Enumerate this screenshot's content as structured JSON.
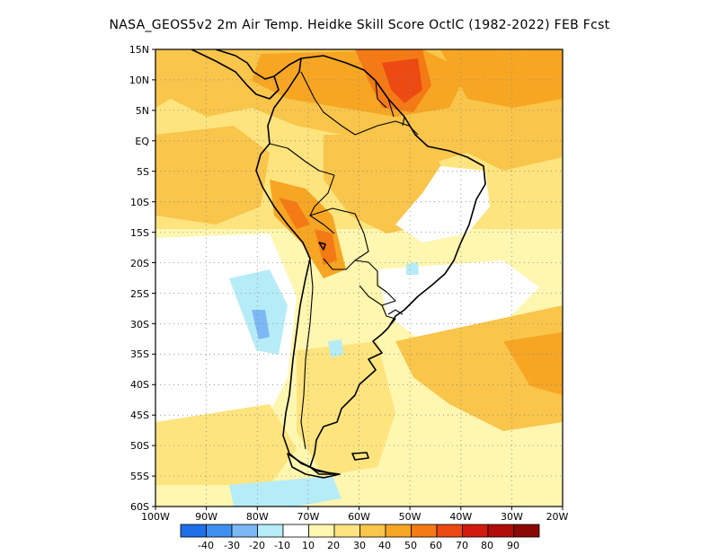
{
  "title": "NASA_GEOS5v2  2m Air Temp. Heidke Skill Score OctlC (1982-2022) FEB Fcst",
  "lat_labels": [
    "15N",
    "10N",
    "5N",
    "EQ",
    "5S",
    "10S",
    "15S",
    "20S",
    "25S",
    "30S",
    "35S",
    "40S",
    "45S",
    "50S",
    "55S",
    "60S"
  ],
  "lon_labels": [
    "100W",
    "90W",
    "80W",
    "70W",
    "60W",
    "50W",
    "40W",
    "30W",
    "20W"
  ],
  "colorbar": {
    "labels": [
      "-40",
      "-30",
      "-20",
      "-10",
      "10",
      "20",
      "30",
      "40",
      "50",
      "60",
      "70",
      "80",
      "90"
    ],
    "colors": [
      "#1f6fe8",
      "#3e8ff0",
      "#7cb8f5",
      "#b6ecf7",
      "#ffffff",
      "#fff6b0",
      "#fde47e",
      "#f9c54a",
      "#f6a623",
      "#f47a16",
      "#ec4a12",
      "#d31a0e",
      "#b00d0a",
      "#8b0806"
    ]
  },
  "shading": {
    "white": "#ffffff",
    "c10": "#fff6b0",
    "c20": "#fde47e",
    "c30": "#f9c54a",
    "c40": "#f6a623",
    "c50": "#f47a16",
    "c60": "#ec4a12",
    "neg10": "#b6ecf7",
    "neg20": "#7cb8f5"
  }
}
